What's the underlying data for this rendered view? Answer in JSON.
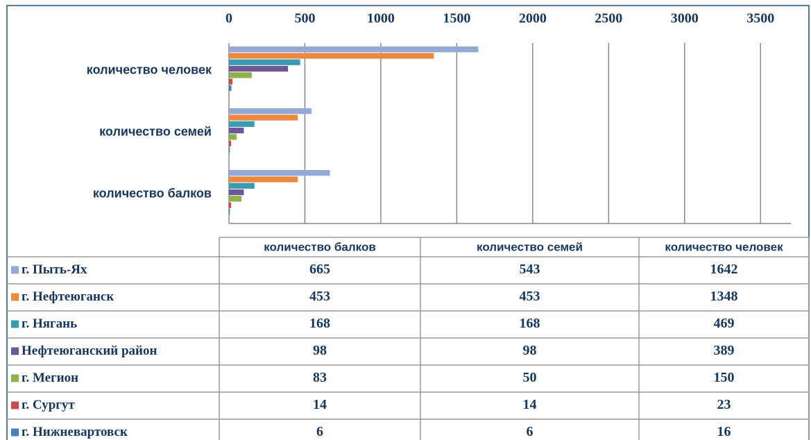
{
  "chart_data": {
    "type": "hbar",
    "categories": [
      "количество балков",
      "количество семей",
      "количество человек"
    ],
    "series": [
      {
        "name": "г. Пыть-Ях",
        "color": "#95a9d6",
        "values": [
          665,
          543,
          1642
        ]
      },
      {
        "name": "г. Нефтеюганск",
        "color": "#e98a40",
        "values": [
          453,
          453,
          1348
        ]
      },
      {
        "name": "г. Нягань",
        "color": "#3a9cb0",
        "values": [
          168,
          168,
          469
        ]
      },
      {
        "name": "Нефтеюганский район",
        "color": "#6e5795",
        "values": [
          98,
          98,
          389
        ]
      },
      {
        "name": "г. Мегион",
        "color": "#8fb04e",
        "values": [
          83,
          50,
          150
        ]
      },
      {
        "name": "г. Сургут",
        "color": "#c0504d",
        "values": [
          14,
          14,
          23
        ]
      },
      {
        "name": "г. Нижневартовск",
        "color": "#4a7dbb",
        "values": [
          6,
          6,
          16
        ]
      }
    ],
    "xlim": [
      0,
      3700
    ],
    "xticks": [
      0,
      500,
      1000,
      1500,
      2000,
      2500,
      3000,
      3500
    ],
    "grid": true
  }
}
